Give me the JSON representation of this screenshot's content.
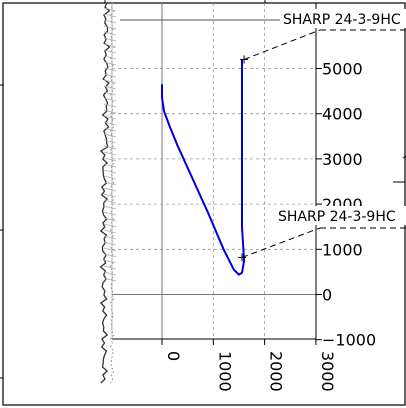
{
  "chart_data": {
    "type": "line",
    "title": "",
    "y_ticks": [
      5000,
      4000,
      3000,
      2000,
      1000,
      0,
      -1000
    ],
    "x_ticks": [
      0,
      1000,
      2000,
      3000
    ],
    "ylim": [
      -1000,
      5500
    ],
    "xlim": [
      -500,
      3000
    ],
    "grid": true,
    "series": [
      {
        "name": "",
        "color": "#0000dd",
        "x": [
          0,
          0,
          40,
          150,
          300,
          600,
          900,
          1200,
          1400,
          1500,
          1560,
          1600,
          1560,
          1560,
          1560
        ],
        "y": [
          4650,
          4350,
          4050,
          3720,
          3300,
          2550,
          1800,
          1000,
          550,
          440,
          480,
          750,
          1500,
          3500,
          5200
        ]
      }
    ],
    "annotations": [
      {
        "label": "SHARP 24-3-9HC",
        "x": 1600,
        "y": 5200
      },
      {
        "label": "SHARP 24-3-9HC",
        "x": 1560,
        "y": 820
      }
    ]
  }
}
